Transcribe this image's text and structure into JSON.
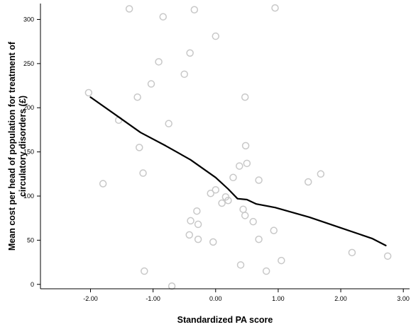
{
  "chart_data": {
    "type": "scatter",
    "xlabel": "Standardized PA score",
    "ylabel_lines": [
      "Mean cost per head of population for treatment of",
      "circulatory disorders (£)"
    ],
    "xlim": [
      -2.8,
      3.1
    ],
    "ylim": [
      -5,
      318
    ],
    "x_ticks": [
      -2.0,
      -1.0,
      0.0,
      1.0,
      2.0,
      3.0
    ],
    "x_tick_labels": [
      "-2.00",
      "-1.00",
      "0.00",
      "1.00",
      "2.00",
      "3.00"
    ],
    "y_ticks": [
      0,
      50,
      100,
      150,
      200,
      250,
      300
    ],
    "y_tick_labels": [
      "0",
      "50",
      "100",
      "150",
      "200",
      "250",
      "300"
    ],
    "point_color": "#c8c8c8",
    "line_color": "#000000",
    "points": [
      {
        "x": -1.38,
        "y": 312
      },
      {
        "x": -0.34,
        "y": 311
      },
      {
        "x": 0.95,
        "y": 313
      },
      {
        "x": -0.84,
        "y": 303
      },
      {
        "x": 0.0,
        "y": 281
      },
      {
        "x": -0.41,
        "y": 262
      },
      {
        "x": -0.91,
        "y": 252
      },
      {
        "x": -0.5,
        "y": 238
      },
      {
        "x": -1.03,
        "y": 227
      },
      {
        "x": -2.03,
        "y": 217
      },
      {
        "x": -1.25,
        "y": 212
      },
      {
        "x": 0.47,
        "y": 212
      },
      {
        "x": -1.55,
        "y": 186
      },
      {
        "x": -0.75,
        "y": 182
      },
      {
        "x": 0.48,
        "y": 157
      },
      {
        "x": -1.22,
        "y": 155
      },
      {
        "x": 0.5,
        "y": 137
      },
      {
        "x": 0.38,
        "y": 134
      },
      {
        "x": -1.16,
        "y": 126
      },
      {
        "x": 1.68,
        "y": 125
      },
      {
        "x": 0.28,
        "y": 121
      },
      {
        "x": 0.69,
        "y": 118
      },
      {
        "x": 1.48,
        "y": 116
      },
      {
        "x": -1.8,
        "y": 114
      },
      {
        "x": 0.0,
        "y": 107
      },
      {
        "x": -0.08,
        "y": 103
      },
      {
        "x": 0.16,
        "y": 99
      },
      {
        "x": 0.2,
        "y": 95
      },
      {
        "x": 0.1,
        "y": 92
      },
      {
        "x": 0.44,
        "y": 85
      },
      {
        "x": -0.3,
        "y": 83
      },
      {
        "x": 0.47,
        "y": 78
      },
      {
        "x": -0.4,
        "y": 72
      },
      {
        "x": 0.6,
        "y": 71
      },
      {
        "x": -0.28,
        "y": 68
      },
      {
        "x": 0.93,
        "y": 61
      },
      {
        "x": -0.42,
        "y": 56
      },
      {
        "x": -0.28,
        "y": 51
      },
      {
        "x": 0.69,
        "y": 51
      },
      {
        "x": -0.04,
        "y": 48
      },
      {
        "x": 2.18,
        "y": 36
      },
      {
        "x": 2.75,
        "y": 32
      },
      {
        "x": 1.05,
        "y": 27
      },
      {
        "x": 0.4,
        "y": 22
      },
      {
        "x": -1.14,
        "y": 15
      },
      {
        "x": 0.81,
        "y": 15
      },
      {
        "x": -0.7,
        "y": -2
      }
    ],
    "fit_line": [
      {
        "x": -2.0,
        "y": 212
      },
      {
        "x": -1.6,
        "y": 192
      },
      {
        "x": -1.2,
        "y": 172
      },
      {
        "x": -0.8,
        "y": 157
      },
      {
        "x": -0.4,
        "y": 141
      },
      {
        "x": 0.0,
        "y": 121
      },
      {
        "x": 0.2,
        "y": 108
      },
      {
        "x": 0.35,
        "y": 97
      },
      {
        "x": 0.5,
        "y": 96
      },
      {
        "x": 0.65,
        "y": 91
      },
      {
        "x": 0.95,
        "y": 87
      },
      {
        "x": 1.5,
        "y": 76
      },
      {
        "x": 2.0,
        "y": 64
      },
      {
        "x": 2.5,
        "y": 52
      },
      {
        "x": 2.72,
        "y": 44
      }
    ]
  }
}
